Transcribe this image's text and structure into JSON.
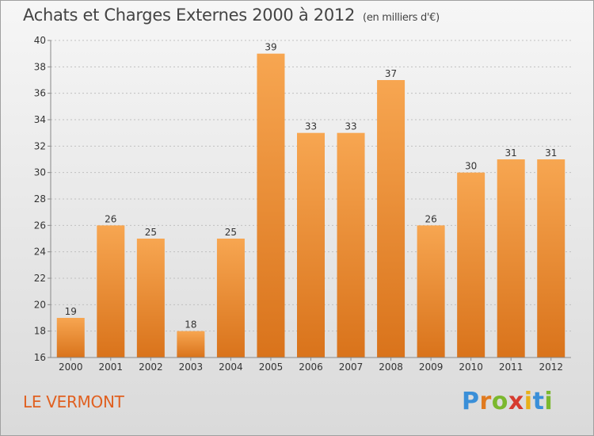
{
  "title": "Achats et Charges Externes 2000 à 2012",
  "title_unit": "(en milliers d'€)",
  "commune": "LE VERMONT",
  "logo": {
    "text": "Proxiti",
    "letters": [
      {
        "char": "P",
        "color": "#3a8fd8"
      },
      {
        "char": "r",
        "color": "#e07a1f"
      },
      {
        "char": "o",
        "color": "#7bb82e"
      },
      {
        "char": "x",
        "color": "#d63b2f"
      },
      {
        "char": "i",
        "color": "#e8b019"
      },
      {
        "char": "t",
        "color": "#3a8fd8"
      },
      {
        "char": "i",
        "color": "#7bb82e"
      }
    ]
  },
  "colors": {
    "bar_light": "#f7a651",
    "bar_dark": "#d9731b",
    "grid": "#c0c0c0",
    "axis_text": "#333333"
  },
  "chart_data": {
    "type": "bar",
    "categories": [
      "2000",
      "2001",
      "2002",
      "2003",
      "2004",
      "2005",
      "2006",
      "2007",
      "2008",
      "2009",
      "2010",
      "2011",
      "2012"
    ],
    "values": [
      19,
      26,
      25,
      18,
      25,
      39,
      33,
      33,
      37,
      26,
      30,
      31,
      31
    ],
    "ylim": [
      16,
      40
    ],
    "yticks": [
      16,
      18,
      20,
      22,
      24,
      26,
      28,
      30,
      32,
      34,
      36,
      38,
      40
    ],
    "grid": true,
    "data_labels": true
  }
}
